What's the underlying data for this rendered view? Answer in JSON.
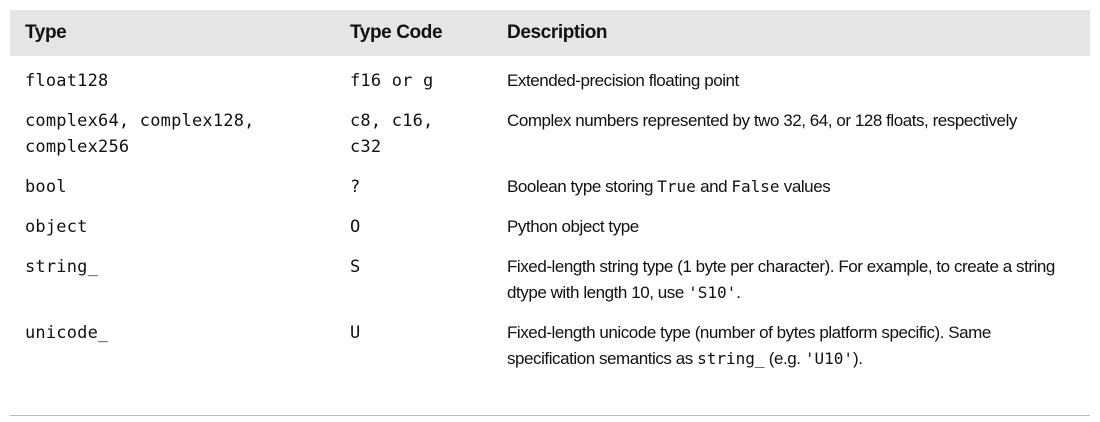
{
  "table": {
    "headers": [
      "Type",
      "Type Code",
      "Description"
    ],
    "rows": [
      {
        "type": "float128",
        "code": "f16 or g",
        "desc": [
          {
            "t": "Extended-precision floating point"
          }
        ]
      },
      {
        "type": "complex64, complex128,\ncomplex256",
        "code": "c8, c16,\nc32",
        "desc": [
          {
            "t": "Complex numbers represented by two 32, 64, or 128 floats, respectively"
          }
        ]
      },
      {
        "type": "bool",
        "code": "?",
        "desc": [
          {
            "t": "Boolean type storing "
          },
          {
            "t": "True",
            "code": true
          },
          {
            "t": " and "
          },
          {
            "t": "False",
            "code": true
          },
          {
            "t": " values"
          }
        ]
      },
      {
        "type": "object",
        "code": "O",
        "desc": [
          {
            "t": "Python object type"
          }
        ]
      },
      {
        "type": "string_",
        "code": "S",
        "desc": [
          {
            "t": "Fixed-length string type (1 byte per character). For example, to create a string dtype with length 10, use "
          },
          {
            "t": "'S10'",
            "code": true
          },
          {
            "t": "."
          }
        ]
      },
      {
        "type": "unicode_",
        "code": "U",
        "desc": [
          {
            "t": "Fixed-length unicode type (number of bytes platform specific). Same specification semantics as "
          },
          {
            "t": "string_",
            "code": true
          },
          {
            "t": " (e.g. "
          },
          {
            "t": "'U10'",
            "code": true
          },
          {
            "t": ")."
          }
        ]
      }
    ]
  }
}
